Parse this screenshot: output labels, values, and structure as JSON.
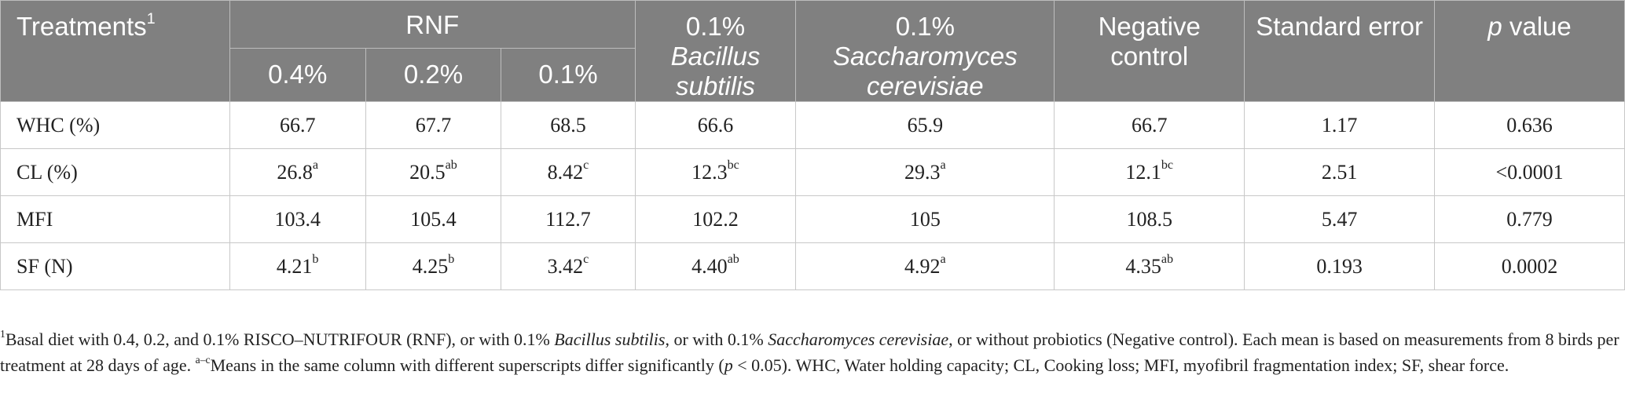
{
  "header": {
    "treatments_label": "Treatments",
    "treatments_sup": "1",
    "rnf_label": "RNF",
    "rnf_levels": [
      "0.4%",
      "0.2%",
      "0.1%"
    ],
    "bacillus": {
      "dose": "0.1%",
      "name": "Bacillus subtilis"
    },
    "saccharomyces": {
      "dose": "0.1%",
      "name": "Saccharomyces cerevisiae"
    },
    "negative_control": "Negative control",
    "standard_error": "Standard error",
    "p_value": {
      "p": "p",
      "label": "value"
    }
  },
  "rows": [
    {
      "label": "WHC (%)",
      "cells": [
        {
          "v": "66.7",
          "s": ""
        },
        {
          "v": "67.7",
          "s": ""
        },
        {
          "v": "68.5",
          "s": ""
        },
        {
          "v": "66.6",
          "s": ""
        },
        {
          "v": "65.9",
          "s": ""
        },
        {
          "v": "66.7",
          "s": ""
        },
        {
          "v": "1.17",
          "s": ""
        },
        {
          "v": "0.636",
          "s": ""
        }
      ]
    },
    {
      "label": "CL (%)",
      "cells": [
        {
          "v": "26.8",
          "s": "a"
        },
        {
          "v": "20.5",
          "s": "ab"
        },
        {
          "v": "8.42",
          "s": "c"
        },
        {
          "v": "12.3",
          "s": "bc"
        },
        {
          "v": "29.3",
          "s": "a"
        },
        {
          "v": "12.1",
          "s": "bc"
        },
        {
          "v": "2.51",
          "s": ""
        },
        {
          "v": "<0.0001",
          "s": ""
        }
      ]
    },
    {
      "label": "MFI",
      "cells": [
        {
          "v": "103.4",
          "s": ""
        },
        {
          "v": "105.4",
          "s": ""
        },
        {
          "v": "112.7",
          "s": ""
        },
        {
          "v": "102.2",
          "s": ""
        },
        {
          "v": "105",
          "s": ""
        },
        {
          "v": "108.5",
          "s": ""
        },
        {
          "v": "5.47",
          "s": ""
        },
        {
          "v": "0.779",
          "s": ""
        }
      ]
    },
    {
      "label": "SF (N)",
      "cells": [
        {
          "v": "4.21",
          "s": "b"
        },
        {
          "v": "4.25",
          "s": "b"
        },
        {
          "v": "3.42",
          "s": "c"
        },
        {
          "v": "4.40",
          "s": "ab"
        },
        {
          "v": "4.92",
          "s": "a"
        },
        {
          "v": "4.35",
          "s": "ab"
        },
        {
          "v": "0.193",
          "s": ""
        },
        {
          "v": "0.0002",
          "s": ""
        }
      ]
    }
  ],
  "footnote": {
    "sup1": "1",
    "t1": "Basal diet with 0.4, 0.2, and 0.1% RISCO–NUTRIFOUR (RNF), or with 0.1% ",
    "i1": "Bacillus subtilis",
    "t2": ", or with 0.1% ",
    "i2": "Saccharomyces cerevisiae",
    "t3": ", or without probiotics (Negative control). Each mean is based on measurements from 8 birds per treatment at 28 days of age. ",
    "sup2": "a–c",
    "t4": "Means in the same column with different superscripts differ significantly (",
    "i3": "p",
    "t5": " < 0.05). WHC, Water holding capacity; CL, Cooking loss; MFI, myofibril fragmentation index; SF, shear force."
  }
}
